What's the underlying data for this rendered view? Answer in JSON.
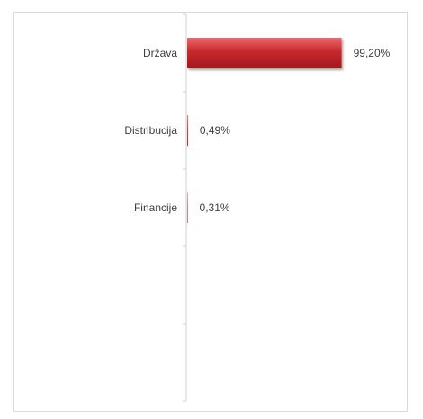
{
  "chart_data": {
    "type": "bar",
    "orientation": "horizontal",
    "categories": [
      "Država",
      "Distribucija",
      "Financije"
    ],
    "values": [
      99.2,
      0.49,
      0.31
    ],
    "value_labels": [
      "99,20%",
      "0,49%",
      "0,31%"
    ],
    "xlim": [
      0,
      100
    ],
    "bar_color": "#c0282c",
    "title": "",
    "xlabel": "",
    "ylabel": "",
    "grid": false,
    "legend": "none"
  }
}
